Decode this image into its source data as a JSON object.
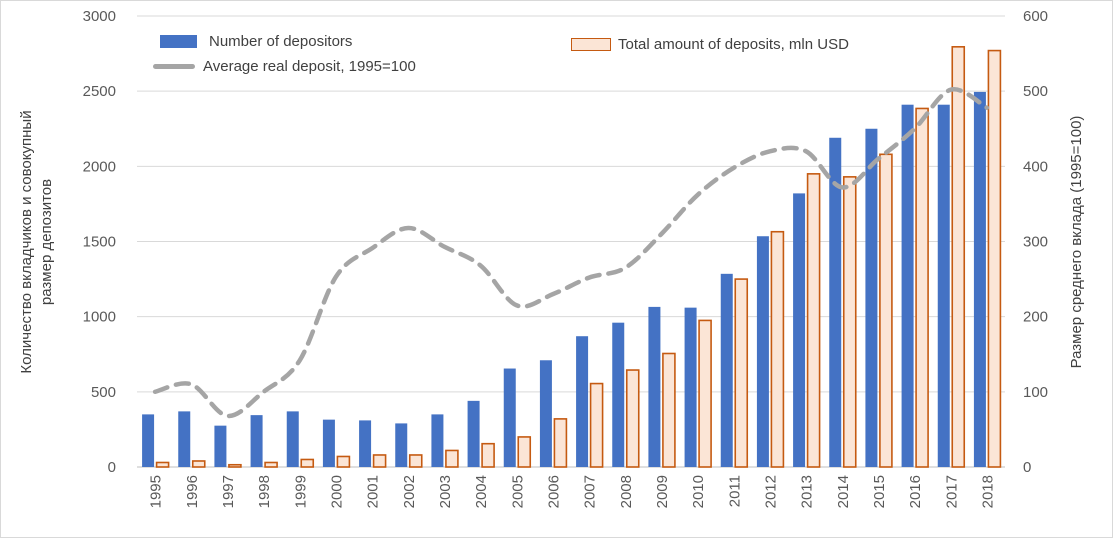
{
  "chart_data": {
    "type": "bar",
    "subtype": "clustered-bar-with-smooth-dashed-line, dual axes",
    "categories": [
      "1995",
      "1996",
      "1997",
      "1998",
      "1999",
      "2000",
      "2001",
      "2002",
      "2003",
      "2004",
      "2005",
      "2006",
      "2007",
      "2008",
      "2009",
      "2010",
      "2011",
      "2012",
      "2013",
      "2014",
      "2015",
      "2016",
      "2017",
      "2018"
    ],
    "series": [
      {
        "name": "Number of depositors",
        "type": "bar",
        "axis": "left",
        "color": "#4472C4",
        "values": [
          350,
          370,
          275,
          345,
          370,
          315,
          310,
          290,
          350,
          440,
          655,
          710,
          870,
          960,
          1065,
          1060,
          1285,
          1535,
          1820,
          2190,
          2250,
          2410,
          2410,
          2495
        ]
      },
      {
        "name": "Total amount of deposits, mln USD",
        "type": "bar",
        "axis": "left",
        "fill": "#FBE5D6",
        "border": "#C55A11",
        "values": [
          30,
          40,
          15,
          30,
          50,
          70,
          80,
          80,
          110,
          155,
          200,
          320,
          555,
          645,
          755,
          975,
          1250,
          1565,
          1950,
          1930,
          2080,
          2385,
          2795,
          2770
        ]
      },
      {
        "name": "Average real deposit, 1995=100",
        "type": "line",
        "axis": "right",
        "color": "#A5A5A5",
        "dashed": true,
        "smooth": true,
        "values": [
          100,
          110,
          68,
          100,
          142,
          253,
          291,
          318,
          293,
          268,
          215,
          230,
          252,
          265,
          310,
          362,
          398,
          420,
          420,
          372,
          410,
          450,
          502,
          478
        ]
      }
    ],
    "left_axis": {
      "title_line1": "Количество вкладчиков и совокупный",
      "title_line2": "размер депозитов",
      "min": 0,
      "max": 3000,
      "step": 500,
      "ticks": [
        "0",
        "500",
        "1000",
        "1500",
        "2000",
        "2500",
        "3000"
      ]
    },
    "right_axis": {
      "title": "Размер среднего вклада (1995=100)",
      "min": 0,
      "max": 600,
      "step": 100,
      "ticks": [
        "0",
        "100",
        "200",
        "300",
        "400",
        "500",
        "600"
      ]
    },
    "grid": true,
    "legend_position": "top-inside"
  },
  "colors": {
    "bar_blue": "#4472C4",
    "bar_orange_fill": "#FBE5D6",
    "bar_orange_border": "#C55A11",
    "line_gray": "#A5A5A5",
    "gridline": "#D9D9D9",
    "baseline": "#BFBFBF",
    "tick_text": "#595959",
    "title_text": "#404040",
    "background": "#FFFFFF"
  }
}
